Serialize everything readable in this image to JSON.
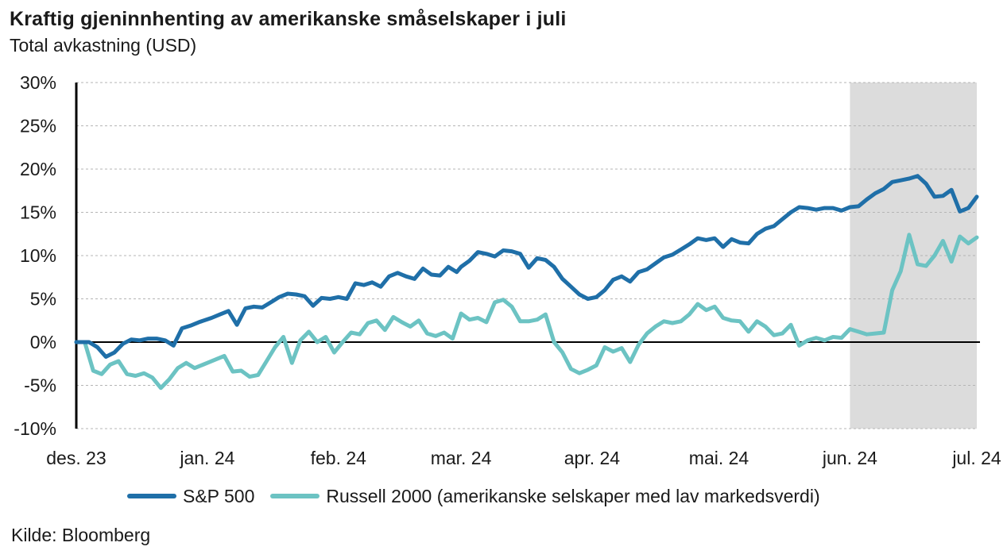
{
  "title": "Kraftig gjeninnhenting av amerikanske småselskaper i juli",
  "subtitle": "Total avkastning (USD)",
  "source": "Kilde: Bloomberg",
  "chart_data": {
    "type": "line",
    "title": "Kraftig gjeninnhenting av amerikanske småselskaper i juli",
    "subtitle": "Total avkastning (USD)",
    "ylim": [
      -10,
      30
    ],
    "yticks": [
      30,
      25,
      20,
      15,
      10,
      5,
      0,
      -5,
      -10
    ],
    "ytick_labels": [
      "30%",
      "25%",
      "20%",
      "15%",
      "10%",
      "5%",
      "0%",
      "-5%",
      "-10%"
    ],
    "xlim": [
      "2023-12-01",
      "2024-07-01"
    ],
    "xtick_labels": [
      "des. 23",
      "jan. 24",
      "feb. 24",
      "mar. 24",
      "apr. 24",
      "mai. 24",
      "jun. 24",
      "jul. 24"
    ],
    "xtick_dates": [
      "2023-12-01",
      "2024-01-01",
      "2024-02-01",
      "2024-03-01",
      "2024-04-01",
      "2024-05-01",
      "2024-06-01",
      "2024-07-01"
    ],
    "shaded_period": [
      "2024-06-01",
      "2024-07-01"
    ],
    "shade_color": "#dcdcdc",
    "zero_line": true,
    "grid": "horizontal dashed",
    "legend_position": "bottom",
    "series": [
      {
        "name": "S&P 500",
        "color": "#1f6fa8",
        "points": [
          [
            "2023-12-01",
            0.0
          ],
          [
            "2023-12-04",
            0.0
          ],
          [
            "2023-12-06",
            -0.6
          ],
          [
            "2023-12-08",
            -1.7
          ],
          [
            "2023-12-10",
            -1.2
          ],
          [
            "2023-12-12",
            -0.2
          ],
          [
            "2023-12-14",
            0.3
          ],
          [
            "2023-12-16",
            0.2
          ],
          [
            "2023-12-18",
            0.4
          ],
          [
            "2023-12-20",
            0.4
          ],
          [
            "2023-12-22",
            0.2
          ],
          [
            "2023-12-24",
            -0.4
          ],
          [
            "2023-12-26",
            1.6
          ],
          [
            "2023-12-28",
            1.9
          ],
          [
            "2023-12-30",
            2.3
          ],
          [
            "2024-01-02",
            2.8
          ],
          [
            "2024-01-04",
            3.2
          ],
          [
            "2024-01-06",
            3.6
          ],
          [
            "2024-01-08",
            2.0
          ],
          [
            "2024-01-10",
            3.9
          ],
          [
            "2024-01-12",
            4.1
          ],
          [
            "2024-01-14",
            4.0
          ],
          [
            "2024-01-16",
            4.6
          ],
          [
            "2024-01-18",
            5.2
          ],
          [
            "2024-01-20",
            5.6
          ],
          [
            "2024-01-22",
            5.5
          ],
          [
            "2024-01-24",
            5.3
          ],
          [
            "2024-01-26",
            4.2
          ],
          [
            "2024-01-28",
            5.1
          ],
          [
            "2024-01-30",
            5.0
          ],
          [
            "2024-02-01",
            5.2
          ],
          [
            "2024-02-03",
            5.0
          ],
          [
            "2024-02-05",
            6.8
          ],
          [
            "2024-02-07",
            6.6
          ],
          [
            "2024-02-09",
            6.9
          ],
          [
            "2024-02-11",
            6.4
          ],
          [
            "2024-02-13",
            7.6
          ],
          [
            "2024-02-15",
            8.0
          ],
          [
            "2024-02-17",
            7.6
          ],
          [
            "2024-02-19",
            7.3
          ],
          [
            "2024-02-21",
            8.5
          ],
          [
            "2024-02-23",
            7.8
          ],
          [
            "2024-02-25",
            7.7
          ],
          [
            "2024-02-27",
            8.7
          ],
          [
            "2024-02-29",
            8.1
          ],
          [
            "2024-03-01",
            8.7
          ],
          [
            "2024-03-03",
            9.4
          ],
          [
            "2024-03-05",
            10.4
          ],
          [
            "2024-03-07",
            10.2
          ],
          [
            "2024-03-09",
            9.9
          ],
          [
            "2024-03-11",
            10.6
          ],
          [
            "2024-03-13",
            10.5
          ],
          [
            "2024-03-15",
            10.2
          ],
          [
            "2024-03-17",
            8.6
          ],
          [
            "2024-03-19",
            9.7
          ],
          [
            "2024-03-21",
            9.5
          ],
          [
            "2024-03-23",
            8.7
          ],
          [
            "2024-03-25",
            7.3
          ],
          [
            "2024-03-27",
            6.4
          ],
          [
            "2024-03-29",
            5.5
          ],
          [
            "2024-03-31",
            5.0
          ],
          [
            "2024-04-02",
            5.2
          ],
          [
            "2024-04-04",
            6.0
          ],
          [
            "2024-04-06",
            7.2
          ],
          [
            "2024-04-08",
            7.6
          ],
          [
            "2024-04-10",
            7.0
          ],
          [
            "2024-04-12",
            8.1
          ],
          [
            "2024-04-14",
            8.4
          ],
          [
            "2024-04-16",
            9.1
          ],
          [
            "2024-04-18",
            9.8
          ],
          [
            "2024-04-20",
            10.1
          ],
          [
            "2024-04-22",
            10.7
          ],
          [
            "2024-04-24",
            11.3
          ],
          [
            "2024-04-26",
            12.0
          ],
          [
            "2024-04-28",
            11.8
          ],
          [
            "2024-04-30",
            12.0
          ],
          [
            "2024-05-02",
            11.0
          ],
          [
            "2024-05-04",
            11.9
          ],
          [
            "2024-05-06",
            11.5
          ],
          [
            "2024-05-08",
            11.4
          ],
          [
            "2024-05-10",
            12.5
          ],
          [
            "2024-05-12",
            13.1
          ],
          [
            "2024-05-14",
            13.4
          ],
          [
            "2024-05-16",
            14.2
          ],
          [
            "2024-05-18",
            15.0
          ],
          [
            "2024-05-20",
            15.6
          ],
          [
            "2024-05-22",
            15.5
          ],
          [
            "2024-05-24",
            15.3
          ],
          [
            "2024-05-26",
            15.5
          ],
          [
            "2024-05-28",
            15.5
          ],
          [
            "2024-05-30",
            15.2
          ],
          [
            "2024-06-01",
            15.6
          ],
          [
            "2024-06-03",
            15.7
          ],
          [
            "2024-06-05",
            16.5
          ],
          [
            "2024-06-07",
            17.2
          ],
          [
            "2024-06-09",
            17.7
          ],
          [
            "2024-06-11",
            18.5
          ],
          [
            "2024-06-13",
            18.7
          ],
          [
            "2024-06-15",
            18.9
          ],
          [
            "2024-06-17",
            19.2
          ],
          [
            "2024-06-19",
            18.3
          ],
          [
            "2024-06-21",
            16.8
          ],
          [
            "2024-06-23",
            16.9
          ],
          [
            "2024-06-25",
            17.6
          ],
          [
            "2024-06-27",
            15.1
          ],
          [
            "2024-06-29",
            15.5
          ],
          [
            "2024-07-01",
            16.8
          ]
        ]
      },
      {
        "name": "Russell 2000 (amerikanske selskaper med lav markedsverdi)",
        "color": "#6cc3c3",
        "points": [
          [
            "2023-12-01",
            0.0
          ],
          [
            "2023-12-03",
            0.0
          ],
          [
            "2023-12-05",
            -3.3
          ],
          [
            "2023-12-07",
            -3.7
          ],
          [
            "2023-12-09",
            -2.6
          ],
          [
            "2023-12-11",
            -2.2
          ],
          [
            "2023-12-13",
            -3.7
          ],
          [
            "2023-12-15",
            -3.9
          ],
          [
            "2023-12-17",
            -3.6
          ],
          [
            "2023-12-19",
            -4.1
          ],
          [
            "2023-12-21",
            -5.3
          ],
          [
            "2023-12-23",
            -4.3
          ],
          [
            "2023-12-25",
            -3.0
          ],
          [
            "2023-12-27",
            -2.4
          ],
          [
            "2023-12-29",
            -3.0
          ],
          [
            "2024-01-01",
            -2.4
          ],
          [
            "2024-01-03",
            -2.0
          ],
          [
            "2024-01-05",
            -1.6
          ],
          [
            "2024-01-07",
            -3.4
          ],
          [
            "2024-01-09",
            -3.3
          ],
          [
            "2024-01-11",
            -4.0
          ],
          [
            "2024-01-13",
            -3.8
          ],
          [
            "2024-01-15",
            -2.2
          ],
          [
            "2024-01-17",
            -0.6
          ],
          [
            "2024-01-19",
            0.6
          ],
          [
            "2024-01-21",
            -2.4
          ],
          [
            "2024-01-23",
            0.2
          ],
          [
            "2024-01-25",
            1.2
          ],
          [
            "2024-01-27",
            0.0
          ],
          [
            "2024-01-29",
            0.6
          ],
          [
            "2024-01-31",
            -1.2
          ],
          [
            "2024-02-02",
            0.0
          ],
          [
            "2024-02-04",
            1.1
          ],
          [
            "2024-02-06",
            0.9
          ],
          [
            "2024-02-08",
            2.2
          ],
          [
            "2024-02-10",
            2.5
          ],
          [
            "2024-02-12",
            1.4
          ],
          [
            "2024-02-14",
            2.9
          ],
          [
            "2024-02-16",
            2.3
          ],
          [
            "2024-02-18",
            1.8
          ],
          [
            "2024-02-20",
            2.5
          ],
          [
            "2024-02-22",
            1.0
          ],
          [
            "2024-02-24",
            0.7
          ],
          [
            "2024-02-26",
            1.1
          ],
          [
            "2024-02-28",
            0.4
          ],
          [
            "2024-03-01",
            3.3
          ],
          [
            "2024-03-03",
            2.6
          ],
          [
            "2024-03-05",
            2.8
          ],
          [
            "2024-03-07",
            2.3
          ],
          [
            "2024-03-09",
            4.6
          ],
          [
            "2024-03-11",
            4.9
          ],
          [
            "2024-03-13",
            4.1
          ],
          [
            "2024-03-15",
            2.4
          ],
          [
            "2024-03-17",
            2.4
          ],
          [
            "2024-03-19",
            2.6
          ],
          [
            "2024-03-21",
            3.2
          ],
          [
            "2024-03-23",
            0.0
          ],
          [
            "2024-03-25",
            -1.2
          ],
          [
            "2024-03-27",
            -3.1
          ],
          [
            "2024-03-29",
            -3.6
          ],
          [
            "2024-03-31",
            -3.2
          ],
          [
            "2024-04-02",
            -2.7
          ],
          [
            "2024-04-04",
            -0.6
          ],
          [
            "2024-04-06",
            -1.1
          ],
          [
            "2024-04-08",
            -0.7
          ],
          [
            "2024-04-10",
            -2.3
          ],
          [
            "2024-04-12",
            -0.3
          ],
          [
            "2024-04-14",
            1.0
          ],
          [
            "2024-04-16",
            1.8
          ],
          [
            "2024-04-18",
            2.4
          ],
          [
            "2024-04-20",
            2.2
          ],
          [
            "2024-04-22",
            2.4
          ],
          [
            "2024-04-24",
            3.2
          ],
          [
            "2024-04-26",
            4.4
          ],
          [
            "2024-04-28",
            3.7
          ],
          [
            "2024-04-30",
            4.1
          ],
          [
            "2024-05-02",
            2.8
          ],
          [
            "2024-05-04",
            2.5
          ],
          [
            "2024-05-06",
            2.4
          ],
          [
            "2024-05-08",
            1.2
          ],
          [
            "2024-05-10",
            2.4
          ],
          [
            "2024-05-12",
            1.8
          ],
          [
            "2024-05-14",
            0.8
          ],
          [
            "2024-05-16",
            1.0
          ],
          [
            "2024-05-18",
            2.0
          ],
          [
            "2024-05-20",
            -0.4
          ],
          [
            "2024-05-22",
            0.2
          ],
          [
            "2024-05-24",
            0.5
          ],
          [
            "2024-05-26",
            0.2
          ],
          [
            "2024-05-28",
            0.6
          ],
          [
            "2024-05-30",
            0.5
          ],
          [
            "2024-06-01",
            1.5
          ],
          [
            "2024-06-03",
            1.2
          ],
          [
            "2024-06-05",
            0.9
          ],
          [
            "2024-06-07",
            1.0
          ],
          [
            "2024-06-09",
            1.1
          ],
          [
            "2024-06-11",
            6.0
          ],
          [
            "2024-06-13",
            8.2
          ],
          [
            "2024-06-15",
            12.4
          ],
          [
            "2024-06-17",
            9.0
          ],
          [
            "2024-06-19",
            8.8
          ],
          [
            "2024-06-21",
            10.0
          ],
          [
            "2024-06-23",
            11.7
          ],
          [
            "2024-06-25",
            9.3
          ],
          [
            "2024-06-27",
            12.2
          ],
          [
            "2024-06-29",
            11.4
          ],
          [
            "2024-07-01",
            12.1
          ]
        ]
      }
    ]
  }
}
